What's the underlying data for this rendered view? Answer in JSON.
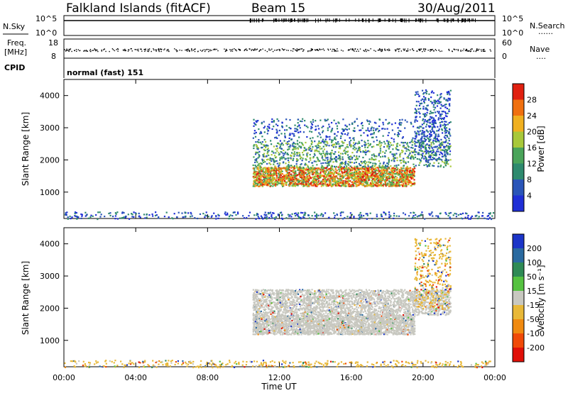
{
  "header": {
    "station": "Falkland Islands (fitACF)",
    "beam": "Beam 15",
    "date": "30/Aug/2011",
    "cpid_value": "normal (fast) 151"
  },
  "panel_labels": {
    "n_sky": "N.Sky",
    "freq_line1": "Freq.",
    "freq_line2": "[MHz]",
    "cpid": "CPID",
    "n_search": "N.Search",
    "nave": "Nave",
    "dots": "......",
    "nave_dots": "....",
    "n_sky_ticks": [
      "10^5",
      "10^0"
    ],
    "n_search_ticks": [
      "10^5",
      "10^0"
    ],
    "freq_ticks": [
      "18",
      "8"
    ],
    "nave_ticks": [
      "60",
      "0"
    ]
  },
  "colors": {
    "power_scale": [
      "#1f2fd6",
      "#2a55b8",
      "#2e8a6e",
      "#4aa45a",
      "#a8c83a",
      "#f0b020",
      "#f07010",
      "#e02010"
    ],
    "velocity_scale": [
      "#1b35c8",
      "#2a6aa0",
      "#2e8a55",
      "#55c240",
      "#c8c8c0",
      "#e8b838",
      "#f08a10",
      "#f04a08",
      "#e01008"
    ]
  },
  "chart_data": [
    {
      "type": "heatmap",
      "title": "",
      "xlabel": "",
      "ylabel": "Slant Range [km]",
      "x_ticks": [
        "00:00",
        "04:00",
        "08:00",
        "12:00",
        "16:00",
        "20:00",
        "00:00"
      ],
      "y_ticks": [
        1000,
        2000,
        3000,
        4000
      ],
      "xlim_hours": [
        0,
        24
      ],
      "ylim_km": [
        180,
        4500
      ],
      "colorbar": {
        "label": "Power [dB]",
        "ticks": [
          4,
          8,
          12,
          16,
          20,
          24,
          28
        ]
      },
      "scatter_regions": [
        {
          "from_hour": 10.5,
          "to_hour": 19.5,
          "range_km": [
            1200,
            1800
          ],
          "level": "high"
        },
        {
          "from_hour": 10.5,
          "to_hour": 21.5,
          "range_km": [
            1800,
            2600
          ],
          "level": "medium"
        },
        {
          "from_hour": 10.5,
          "to_hour": 21.5,
          "range_km": [
            2600,
            3300
          ],
          "level": "low"
        },
        {
          "from_hour": 19.5,
          "to_hour": 21.5,
          "range_km": [
            2000,
            4200
          ],
          "level": "low"
        },
        {
          "from_hour": 0,
          "to_hour": 24,
          "range_km": [
            180,
            400
          ],
          "level": "low"
        }
      ]
    },
    {
      "type": "heatmap",
      "title": "",
      "xlabel": "Time UT",
      "ylabel": "Slant Range [km]",
      "x_ticks": [
        "00:00",
        "04:00",
        "08:00",
        "12:00",
        "16:00",
        "20:00",
        "00:00"
      ],
      "y_ticks": [
        1000,
        2000,
        3000,
        4000
      ],
      "xlim_hours": [
        0,
        24
      ],
      "ylim_km": [
        180,
        4500
      ],
      "colorbar": {
        "label": "Velocity [m s⁻¹]",
        "ticks": [
          200,
          100,
          50,
          15,
          -15,
          -50,
          -100,
          -200
        ]
      },
      "scatter_regions": [
        {
          "from_hour": 10.5,
          "to_hour": 19.5,
          "range_km": [
            1200,
            1800
          ],
          "level": "ground"
        },
        {
          "from_hour": 10.5,
          "to_hour": 21.5,
          "range_km": [
            1800,
            2600
          ],
          "level": "ground"
        },
        {
          "from_hour": 19.5,
          "to_hour": 21.5,
          "range_km": [
            2000,
            4200
          ],
          "level": "negative"
        },
        {
          "from_hour": 0,
          "to_hour": 24,
          "range_km": [
            180,
            400
          ],
          "level": "negative"
        }
      ]
    }
  ]
}
